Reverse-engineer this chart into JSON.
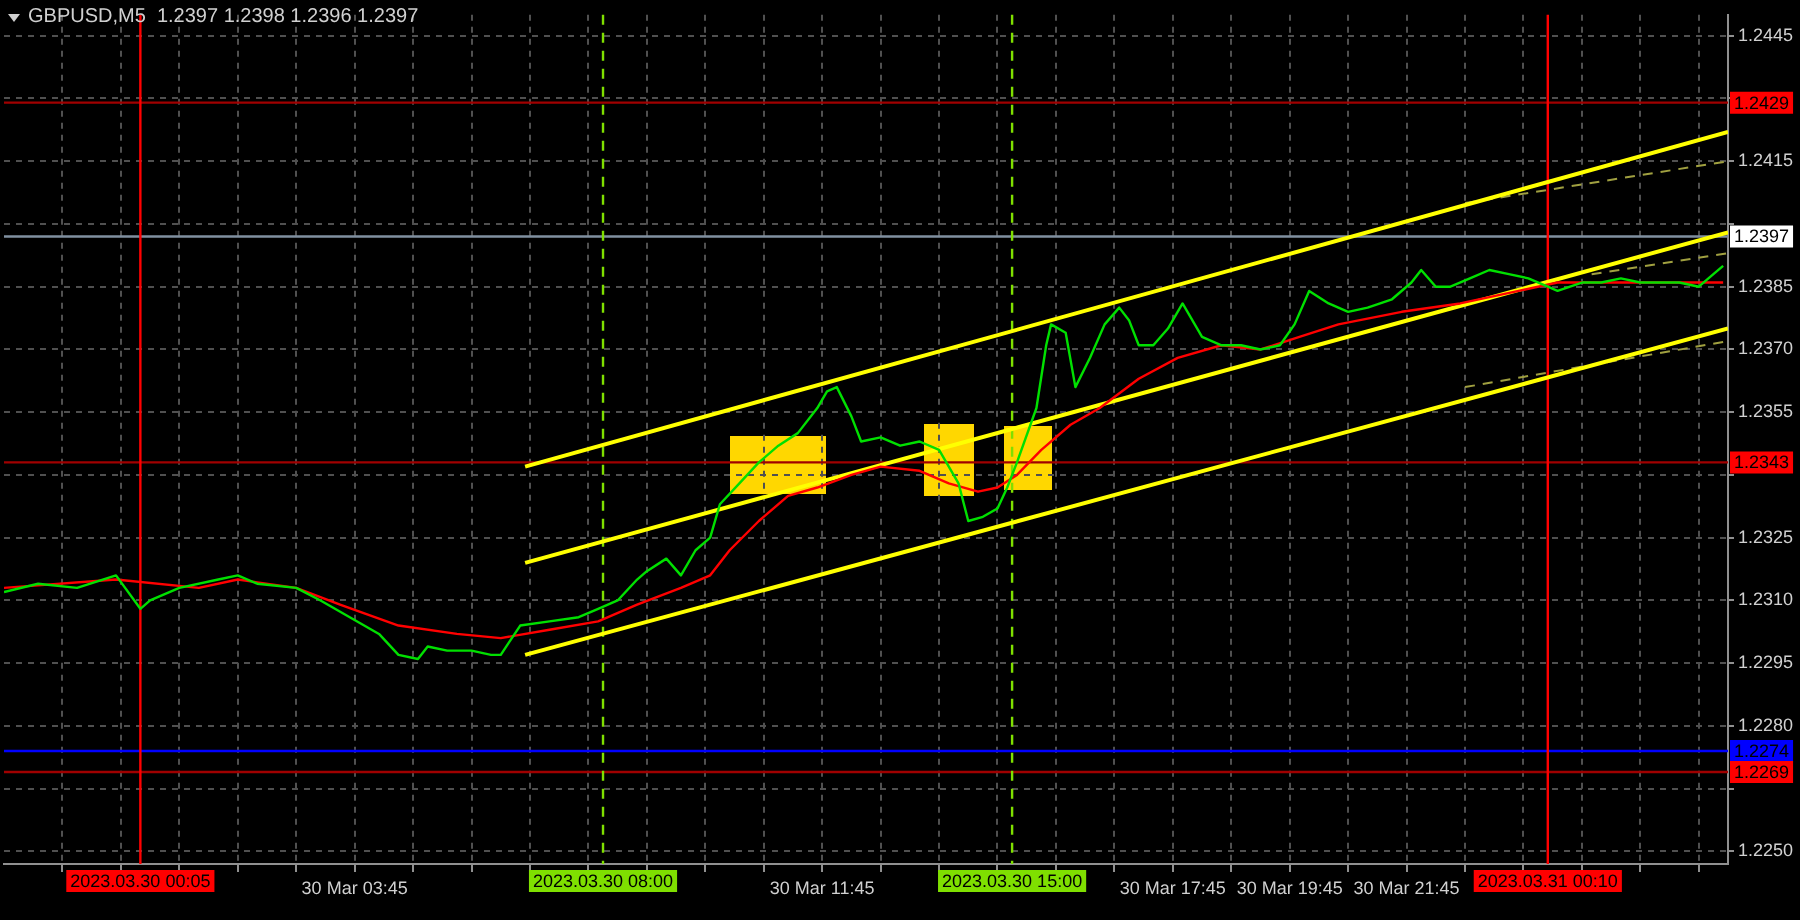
{
  "chart_data": {
    "type": "line",
    "title": "GBPUSD,M5  1.2397 1.2398 1.2396 1.2397",
    "marker": "none",
    "grid": true,
    "legend": false,
    "xlim": [
      "2023-03-29T21:45",
      "2023-03-31T03:15"
    ],
    "xticks": [
      {
        "value": "2023-03-29T22:45",
        "label": null
      },
      {
        "value": "2023-03-29T23:45",
        "label": null
      },
      {
        "value": "2023-03-30T00:45",
        "label": null
      },
      {
        "value": "2023-03-30T01:45",
        "label": null
      },
      {
        "value": "2023-03-30T02:45",
        "label": null
      },
      {
        "value": "2023-03-30T03:45",
        "label": "30 Mar 03:45"
      },
      {
        "value": "2023-03-30T04:45",
        "label": null
      },
      {
        "value": "2023-03-30T05:45",
        "label": null
      },
      {
        "value": "2023-03-30T06:45",
        "label": null
      },
      {
        "value": "2023-03-30T07:45",
        "label": null
      },
      {
        "value": "2023-03-30T08:45",
        "label": null
      },
      {
        "value": "2023-03-30T09:45",
        "label": null
      },
      {
        "value": "2023-03-30T10:45",
        "label": null
      },
      {
        "value": "2023-03-30T11:45",
        "label": "30 Mar 11:45"
      },
      {
        "value": "2023-03-30T12:45",
        "label": null
      },
      {
        "value": "2023-03-30T13:45",
        "label": null
      },
      {
        "value": "2023-03-30T14:45",
        "label": null
      },
      {
        "value": "2023-03-30T15:45",
        "label": null
      },
      {
        "value": "2023-03-30T16:45",
        "label": null
      },
      {
        "value": "2023-03-30T17:45",
        "label": "30 Mar 17:45"
      },
      {
        "value": "2023-03-30T18:45",
        "label": null
      },
      {
        "value": "2023-03-30T19:45",
        "label": "30 Mar 19:45"
      },
      {
        "value": "2023-03-30T20:45",
        "label": null
      },
      {
        "value": "2023-03-30T21:45",
        "label": "30 Mar 21:45"
      },
      {
        "value": "2023-03-30T22:45",
        "label": null
      },
      {
        "value": "2023-03-30T23:45",
        "label": null
      },
      {
        "value": "2023-03-31T00:45",
        "label": null
      },
      {
        "value": "2023-03-31T01:45",
        "label": null
      },
      {
        "value": "2023-03-31T02:45",
        "label": null
      }
    ],
    "ylim": [
      1.2247,
      1.245
    ],
    "yticks": [
      {
        "value": 1.225,
        "label": "1.2250"
      },
      {
        "value": 1.2265,
        "label": null
      },
      {
        "value": 1.228,
        "label": "1.2280"
      },
      1.2295,
      {
        "value": 1.231,
        "label": "1.2310"
      },
      1.2325,
      {
        "value": 1.234,
        "label": null
      },
      1.2355,
      {
        "value": 1.237,
        "label": "1.2370"
      },
      1.2385,
      {
        "value": 1.24,
        "label": null
      },
      1.2415,
      {
        "value": 1.243,
        "label": null
      },
      1.2445
    ],
    "ref_lines": [
      {
        "axis": "y",
        "value": 1.2429,
        "label": "1.2429",
        "color": "#a00000"
      },
      {
        "axis": "y",
        "value": 1.2397,
        "label": "1.2397",
        "color": "#8090a0"
      },
      {
        "axis": "y",
        "value": 1.2343,
        "label": "1.2343",
        "color": "#a00000"
      },
      {
        "axis": "y",
        "value": 1.2274,
        "label": "1.2274",
        "color": "#0000ff"
      },
      {
        "axis": "y",
        "value": 1.2269,
        "label": "1.2269",
        "color": "#a00000"
      },
      {
        "axis": "x",
        "value": "2023-03-30T00:05",
        "label": "2023.03.30 00:05",
        "color": "#ff0000",
        "line_style": "solid"
      },
      {
        "axis": "x",
        "value": "2023-03-30T08:00",
        "label": "2023.03.30 08:00",
        "color": "#7fdf00",
        "line_style": "dashed"
      },
      {
        "axis": "x",
        "value": "2023-03-30T15:00",
        "label": "2023.03.30 15:00",
        "color": "#7fdf00",
        "line_style": "dashed"
      },
      {
        "axis": "x",
        "value": "2023-03-31T00:10",
        "label": "2023.03.31 00:10",
        "color": "#ff0000",
        "line_style": "solid"
      }
    ],
    "series": [
      {
        "color": "#00e000",
        "x": [
          "2023-03-29T21:45",
          "2023-03-29T22:20",
          "2023-03-29T23:00",
          "2023-03-29T23:40",
          "2023-03-30T00:05",
          "2023-03-30T00:15",
          "2023-03-30T00:45",
          "2023-03-30T01:25",
          "2023-03-30T01:45",
          "2023-03-30T02:05",
          "2023-03-30T02:45",
          "2023-03-30T03:10",
          "2023-03-30T03:40",
          "2023-03-30T04:10",
          "2023-03-30T04:30",
          "2023-03-30T04:50",
          "2023-03-30T05:00",
          "2023-03-30T05:20",
          "2023-03-30T05:45",
          "2023-03-30T06:05",
          "2023-03-30T06:15",
          "2023-03-30T06:35",
          "2023-03-30T07:05",
          "2023-03-30T07:35",
          "2023-03-30T07:55",
          "2023-03-30T08:15",
          "2023-03-30T08:35",
          "2023-03-30T08:45",
          "2023-03-30T09:05",
          "2023-03-30T09:20",
          "2023-03-30T09:35",
          "2023-03-30T09:50",
          "2023-03-30T10:00",
          "2023-03-30T10:20",
          "2023-03-30T10:40",
          "2023-03-30T11:00",
          "2023-03-30T11:20",
          "2023-03-30T11:40",
          "2023-03-30T11:50",
          "2023-03-30T12:00",
          "2023-03-30T12:15",
          "2023-03-30T12:25",
          "2023-03-30T12:45",
          "2023-03-30T13:05",
          "2023-03-30T13:25",
          "2023-03-30T13:45",
          "2023-03-30T14:05",
          "2023-03-30T14:15",
          "2023-03-30T14:30",
          "2023-03-30T14:45",
          "2023-03-30T14:55",
          "2023-03-30T15:05",
          "2023-03-30T15:25",
          "2023-03-30T15:35",
          "2023-03-30T15:40",
          "2023-03-30T15:55",
          "2023-03-30T16:05",
          "2023-03-30T16:20",
          "2023-03-30T16:35",
          "2023-03-30T16:50",
          "2023-03-30T17:00",
          "2023-03-30T17:10",
          "2023-03-30T17:25",
          "2023-03-30T17:40",
          "2023-03-30T17:55",
          "2023-03-30T18:15",
          "2023-03-30T18:35",
          "2023-03-30T18:55",
          "2023-03-30T19:15",
          "2023-03-30T19:35",
          "2023-03-30T19:50",
          "2023-03-30T20:05",
          "2023-03-30T20:25",
          "2023-03-30T20:45",
          "2023-03-30T21:05",
          "2023-03-30T21:30",
          "2023-03-30T21:50",
          "2023-03-30T22:00",
          "2023-03-30T22:15",
          "2023-03-30T22:30",
          "2023-03-30T22:50",
          "2023-03-30T23:10",
          "2023-03-30T23:30",
          "2023-03-30T23:50",
          "2023-03-31T00:10",
          "2023-03-31T00:20",
          "2023-03-31T00:45",
          "2023-03-31T01:05",
          "2023-03-31T01:25",
          "2023-03-31T01:45",
          "2023-03-31T02:05",
          "2023-03-31T02:25",
          "2023-03-31T02:45",
          "2023-03-31T03:00",
          "2023-03-31T03:10"
        ],
        "values": [
          1.2312,
          1.2314,
          1.2313,
          1.2316,
          1.2308,
          1.231,
          1.2313,
          1.2315,
          1.2316,
          1.2314,
          1.2313,
          1.231,
          1.2306,
          1.2302,
          1.2297,
          1.2296,
          1.2299,
          1.2298,
          1.2298,
          1.2297,
          1.2297,
          1.2304,
          1.2305,
          1.2306,
          1.2308,
          1.231,
          1.2315,
          1.2317,
          1.232,
          1.2316,
          1.2322,
          1.2325,
          1.2333,
          1.2338,
          1.2343,
          1.2347,
          1.235,
          1.2356,
          1.236,
          1.2361,
          1.2354,
          1.2348,
          1.2349,
          1.2347,
          1.2348,
          1.2346,
          1.2338,
          1.2329,
          1.233,
          1.2332,
          1.2337,
          1.2343,
          1.2356,
          1.2371,
          1.2376,
          1.2374,
          1.2361,
          1.2368,
          1.2376,
          1.238,
          1.2377,
          1.2371,
          1.2371,
          1.2375,
          1.2381,
          1.2373,
          1.2371,
          1.2371,
          1.237,
          1.2371,
          1.2376,
          1.2384,
          1.2381,
          1.2379,
          1.238,
          1.2382,
          1.2386,
          1.2389,
          1.2385,
          1.2385,
          1.2387,
          1.2389,
          1.2388,
          1.2387,
          1.2385,
          1.2384,
          1.2386,
          1.2386,
          1.2387,
          1.2386,
          1.2386,
          1.2386,
          1.2385,
          1.2388,
          1.239
        ]
      },
      {
        "color": "#ff0000",
        "x": [
          "2023-03-29T21:45",
          "2023-03-29T23:40",
          "2023-03-30T01:05",
          "2023-03-30T01:45",
          "2023-03-30T02:45",
          "2023-03-30T03:30",
          "2023-03-30T04:30",
          "2023-03-30T05:30",
          "2023-03-30T06:15",
          "2023-03-30T07:05",
          "2023-03-30T07:55",
          "2023-03-30T08:35",
          "2023-03-30T09:20",
          "2023-03-30T09:50",
          "2023-03-30T10:10",
          "2023-03-30T10:40",
          "2023-03-30T11:10",
          "2023-03-30T11:40",
          "2023-03-30T12:15",
          "2023-03-30T12:45",
          "2023-03-30T13:25",
          "2023-03-30T13:55",
          "2023-03-30T14:25",
          "2023-03-30T14:45",
          "2023-03-30T15:05",
          "2023-03-30T15:30",
          "2023-03-30T16:00",
          "2023-03-30T16:30",
          "2023-03-30T17:10",
          "2023-03-30T17:50",
          "2023-03-30T18:35",
          "2023-03-30T19:15",
          "2023-03-30T19:55",
          "2023-03-30T20:35",
          "2023-03-30T21:40",
          "2023-03-30T22:40",
          "2023-03-30T23:40",
          "2023-03-31T00:20",
          "2023-03-31T01:05",
          "2023-03-31T02:05",
          "2023-03-31T03:10"
        ],
        "values": [
          1.2313,
          1.2315,
          1.2313,
          1.2315,
          1.2313,
          1.2309,
          1.2304,
          1.2302,
          1.2301,
          1.2303,
          1.2305,
          1.2309,
          1.2313,
          1.2316,
          1.2322,
          1.2329,
          1.2335,
          1.2337,
          1.234,
          1.2342,
          1.2341,
          1.2338,
          1.2336,
          1.2337,
          1.234,
          1.2346,
          1.2352,
          1.2356,
          1.2363,
          1.2368,
          1.2371,
          1.237,
          1.2373,
          1.2376,
          1.2379,
          1.2381,
          1.2384,
          1.2386,
          1.2386,
          1.2386,
          1.2386
        ]
      },
      {
        "color": "#ffff00",
        "x": [
          "2023-03-30T06:40",
          "2023-03-31T03:15"
        ],
        "values": [
          1.2342,
          1.2422
        ]
      },
      {
        "color": "#ffff00",
        "x": [
          "2023-03-30T06:40",
          "2023-03-31T03:15"
        ],
        "values": [
          1.2319,
          1.2398
        ]
      },
      {
        "color": "#ffff00",
        "x": [
          "2023-03-30T06:40",
          "2023-03-31T03:15"
        ],
        "values": [
          1.2297,
          1.2375
        ]
      },
      {
        "color": "#a0a040",
        "line_style": "dashed",
        "x": [
          "2023-03-30T22:45",
          "2023-03-31T03:15"
        ],
        "values": [
          1.2405,
          1.2415
        ]
      },
      {
        "color": "#a0a040",
        "line_style": "dashed",
        "x": [
          "2023-03-31T00:55",
          "2023-03-31T03:15"
        ],
        "values": [
          1.2388,
          1.2393
        ]
      },
      {
        "color": "#a0a040",
        "line_style": "dashed",
        "x": [
          "2023-03-30T22:45",
          "2023-03-31T03:15"
        ],
        "values": [
          1.2361,
          1.2372
        ]
      }
    ]
  }
}
